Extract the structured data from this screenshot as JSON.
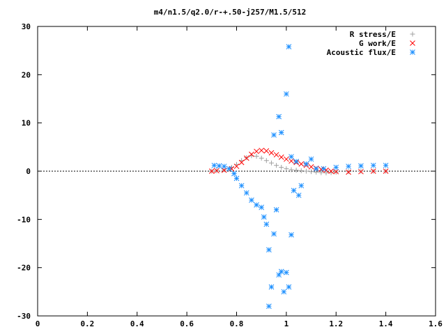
{
  "chart_data": {
    "type": "scatter",
    "title": "m4/n1.5/q2.0/r-+.50-j257/M1.5/512",
    "xlabel": "",
    "ylabel": "",
    "xlim": [
      0,
      1.6
    ],
    "ylim": [
      -30,
      30
    ],
    "x_ticks": [
      0,
      0.2,
      0.4,
      0.6,
      0.8,
      1,
      1.2,
      1.4,
      1.6
    ],
    "x_tick_labels": [
      "0",
      "0.2",
      "0.4",
      "0.6",
      "0.8",
      "1",
      "1.2",
      "1.4",
      "1.6"
    ],
    "y_ticks": [
      -30,
      -20,
      -10,
      0,
      10,
      20,
      30
    ],
    "y_tick_labels": [
      "-30",
      "-20",
      "-10",
      "0",
      "10",
      "20",
      "30"
    ],
    "grid": false,
    "legend_position": "top-right",
    "series": [
      {
        "name": "R stress/E",
        "marker": "plus",
        "color": "#a0a0a0",
        "points": [
          [
            0.7,
            0
          ],
          [
            0.72,
            0.1
          ],
          [
            0.75,
            0.3
          ],
          [
            0.78,
            0.8
          ],
          [
            0.8,
            1.4
          ],
          [
            0.82,
            2.2
          ],
          [
            0.84,
            2.8
          ],
          [
            0.86,
            3.2
          ],
          [
            0.88,
            3.1
          ],
          [
            0.9,
            2.7
          ],
          [
            0.92,
            2.2
          ],
          [
            0.94,
            1.7
          ],
          [
            0.96,
            1.2
          ],
          [
            0.98,
            0.8
          ],
          [
            1.0,
            0.5
          ],
          [
            1.02,
            0.3
          ],
          [
            1.04,
            0.2
          ],
          [
            1.06,
            0.1
          ],
          [
            1.08,
            0
          ],
          [
            1.1,
            -0.1
          ],
          [
            1.12,
            -0.2
          ],
          [
            1.14,
            -0.3
          ],
          [
            1.16,
            -0.35
          ],
          [
            1.18,
            -0.3
          ],
          [
            1.2,
            -0.2
          ],
          [
            1.25,
            -0.1
          ],
          [
            1.3,
            0
          ],
          [
            1.35,
            0
          ],
          [
            1.4,
            0
          ]
        ]
      },
      {
        "name": "G work/E",
        "marker": "cross",
        "color": "#ff0000",
        "points": [
          [
            0.7,
            0
          ],
          [
            0.72,
            0.1
          ],
          [
            0.75,
            0.2
          ],
          [
            0.78,
            0.5
          ],
          [
            0.8,
            1
          ],
          [
            0.82,
            1.8
          ],
          [
            0.84,
            2.7
          ],
          [
            0.86,
            3.5
          ],
          [
            0.88,
            4.1
          ],
          [
            0.9,
            4.3
          ],
          [
            0.92,
            4.2
          ],
          [
            0.94,
            3.8
          ],
          [
            0.96,
            3.4
          ],
          [
            0.98,
            2.9
          ],
          [
            1.0,
            2.5
          ],
          [
            1.02,
            2.1
          ],
          [
            1.04,
            1.8
          ],
          [
            1.06,
            1.5
          ],
          [
            1.08,
            1.2
          ],
          [
            1.1,
            0.9
          ],
          [
            1.12,
            0.6
          ],
          [
            1.14,
            0.4
          ],
          [
            1.16,
            0.2
          ],
          [
            1.18,
            0
          ],
          [
            1.2,
            -0.1
          ],
          [
            1.25,
            -0.2
          ],
          [
            1.3,
            -0.1
          ],
          [
            1.35,
            0
          ],
          [
            1.4,
            0
          ]
        ]
      },
      {
        "name": "Acoustic flux/E",
        "marker": "star",
        "color": "#1e90ff",
        "points": [
          [
            0.71,
            1.2
          ],
          [
            0.73,
            1.1
          ],
          [
            0.75,
            1
          ],
          [
            0.77,
            0.5
          ],
          [
            0.79,
            -0.5
          ],
          [
            0.8,
            -1.5
          ],
          [
            0.82,
            -3
          ],
          [
            0.84,
            -4.5
          ],
          [
            0.86,
            -6
          ],
          [
            0.88,
            -7
          ],
          [
            0.9,
            -7.5
          ],
          [
            0.91,
            -9.5
          ],
          [
            0.92,
            -11
          ],
          [
            0.93,
            -16.3
          ],
          [
            0.94,
            -24
          ],
          [
            0.93,
            -28
          ],
          [
            0.95,
            -13
          ],
          [
            0.96,
            -8
          ],
          [
            0.97,
            -21.5
          ],
          [
            0.98,
            -20.8
          ],
          [
            0.99,
            -25
          ],
          [
            1.0,
            -21
          ],
          [
            1.01,
            -24
          ],
          [
            1.02,
            -13.2
          ],
          [
            0.95,
            7.5
          ],
          [
            0.97,
            11.3
          ],
          [
            0.98,
            8
          ],
          [
            1.0,
            16
          ],
          [
            1.01,
            25.8
          ],
          [
            1.02,
            3
          ],
          [
            1.03,
            -4
          ],
          [
            1.04,
            2
          ],
          [
            1.05,
            -5
          ],
          [
            1.06,
            -3
          ],
          [
            1.08,
            1.5
          ],
          [
            1.1,
            2.5
          ],
          [
            1.12,
            0.5
          ],
          [
            1.15,
            0.5
          ],
          [
            1.2,
            0.8
          ],
          [
            1.25,
            1
          ],
          [
            1.3,
            1.1
          ],
          [
            1.35,
            1.2
          ],
          [
            1.4,
            1.2
          ]
        ]
      }
    ]
  }
}
